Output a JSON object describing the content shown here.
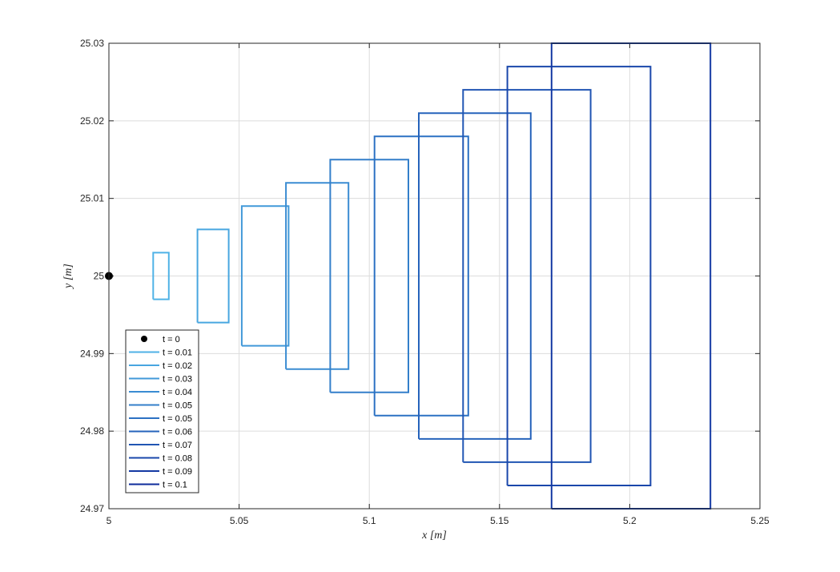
{
  "chart_data": {
    "type": "line",
    "xlabel": "x [m]",
    "ylabel": "y [m]",
    "xlim": [
      5,
      5.25
    ],
    "ylim": [
      24.97,
      25.03
    ],
    "xticks": [
      "5",
      "5.05",
      "5.1",
      "5.15",
      "5.2",
      "5.25"
    ],
    "yticks": [
      "24.97",
      "24.98",
      "24.99",
      "25",
      "25.01",
      "25.02",
      "25.03"
    ],
    "grid": true,
    "legend_position": "bottom-left",
    "point": {
      "name": "t = 0",
      "x": 5,
      "y": 25,
      "color": "#000000"
    },
    "series": [
      {
        "name": "t = 0.01",
        "color": "#4fb2e6",
        "x": [
          5.017,
          5.023,
          5.023,
          5.017,
          5.017
        ],
        "y": [
          24.997,
          24.997,
          25.003,
          25.003,
          24.997
        ]
      },
      {
        "name": "t = 0.02",
        "color": "#48a6e0",
        "x": [
          5.034,
          5.046,
          5.046,
          5.034,
          5.034
        ],
        "y": [
          24.994,
          24.994,
          25.006,
          25.006,
          24.994
        ]
      },
      {
        "name": "t = 0.03",
        "color": "#4199d9",
        "x": [
          5.051,
          5.069,
          5.069,
          5.051,
          5.051
        ],
        "y": [
          24.991,
          24.991,
          25.009,
          25.009,
          24.991
        ]
      },
      {
        "name": "t = 0.04",
        "color": "#3a8cd2",
        "x": [
          5.068,
          5.092,
          5.092,
          5.068,
          5.068
        ],
        "y": [
          24.988,
          24.988,
          25.012,
          25.012,
          24.988
        ]
      },
      {
        "name": "t = 0.05",
        "color": "#337fca",
        "x": [
          5.085,
          5.115,
          5.115,
          5.085,
          5.085
        ],
        "y": [
          24.985,
          24.985,
          25.015,
          25.015,
          24.985
        ]
      },
      {
        "name": "t = 0.05",
        "color": "#2c71c3",
        "x": [
          5.102,
          5.138,
          5.138,
          5.102,
          5.102
        ],
        "y": [
          24.982,
          24.982,
          25.018,
          25.018,
          24.982
        ]
      },
      {
        "name": "t = 0.06",
        "color": "#2663bb",
        "x": [
          5.119,
          5.162,
          5.162,
          5.119,
          5.119
        ],
        "y": [
          24.979,
          24.979,
          25.021,
          25.021,
          24.979
        ]
      },
      {
        "name": "t = 0.07",
        "color": "#2055b3",
        "x": [
          5.136,
          5.185,
          5.185,
          5.136,
          5.136
        ],
        "y": [
          24.976,
          24.976,
          25.024,
          25.024,
          24.976
        ]
      },
      {
        "name": "t = 0.08",
        "color": "#1a47ab",
        "x": [
          5.153,
          5.208,
          5.208,
          5.153,
          5.153
        ],
        "y": [
          24.973,
          24.973,
          25.027,
          25.027,
          24.973
        ]
      },
      {
        "name": "t = 0.09",
        "color": "#1439a3",
        "x": [
          5.17,
          5.231,
          5.231,
          5.17,
          5.17
        ],
        "y": [
          24.97,
          24.97,
          25.03,
          25.03,
          24.97
        ]
      },
      {
        "name": "t = 0.1",
        "color": "#0e2b9b",
        "x": [],
        "y": []
      }
    ]
  }
}
